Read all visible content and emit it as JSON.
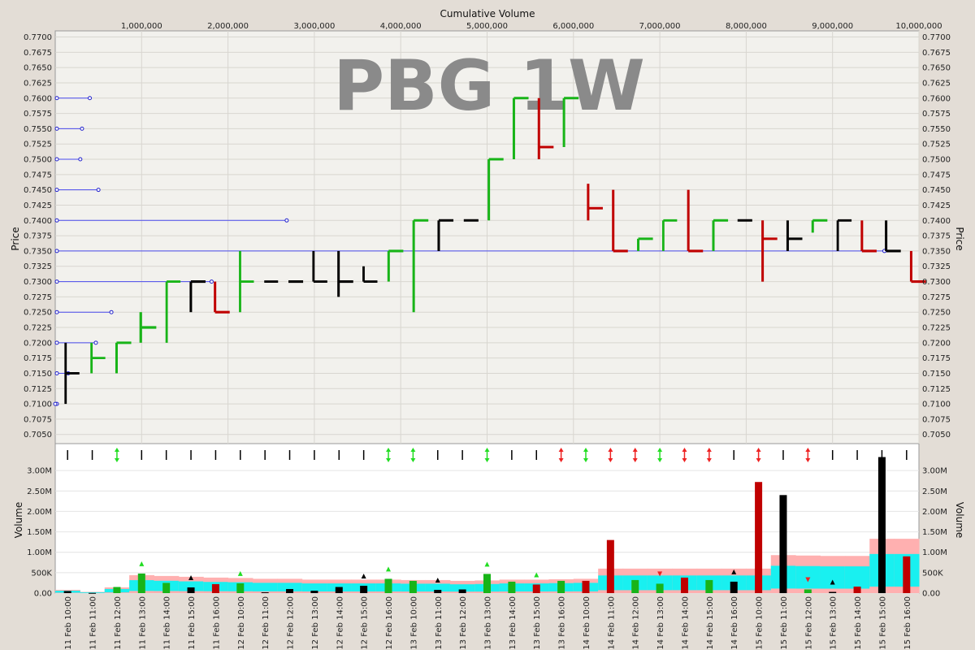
{
  "chart_data": [
    {
      "type": "line",
      "panel": "price",
      "watermark": "PBG 1W",
      "xlabel": "Cumulative Volume",
      "ylabel": "Price",
      "xlim": [
        0,
        10000000
      ],
      "ylim": [
        0.7035,
        0.771
      ],
      "x_ticks": [
        {
          "v": 1000000,
          "label": "1,000,000"
        },
        {
          "v": 2000000,
          "label": "2,000,000"
        },
        {
          "v": 3000000,
          "label": "3,000,000"
        },
        {
          "v": 4000000,
          "label": "4,000,000"
        },
        {
          "v": 5000000,
          "label": "5,000,000"
        },
        {
          "v": 6000000,
          "label": "6,000,000"
        },
        {
          "v": 7000000,
          "label": "7,000,000"
        },
        {
          "v": 8000000,
          "label": "8,000,000"
        },
        {
          "v": 9000000,
          "label": "9,000,000"
        },
        {
          "v": 10000000,
          "label": "10,000,000"
        }
      ],
      "y_ticks": [
        {
          "v": 0.77,
          "label": "0.7700"
        },
        {
          "v": 0.7675,
          "label": "0.7675"
        },
        {
          "v": 0.765,
          "label": "0.7650"
        },
        {
          "v": 0.7625,
          "label": "0.7625"
        },
        {
          "v": 0.76,
          "label": "0.7600"
        },
        {
          "v": 0.7575,
          "label": "0.7575"
        },
        {
          "v": 0.755,
          "label": "0.7550"
        },
        {
          "v": 0.7525,
          "label": "0.7525"
        },
        {
          "v": 0.75,
          "label": "0.7500"
        },
        {
          "v": 0.7475,
          "label": "0.7475"
        },
        {
          "v": 0.745,
          "label": "0.7450"
        },
        {
          "v": 0.7425,
          "label": "0.7425"
        },
        {
          "v": 0.74,
          "label": "0.7400"
        },
        {
          "v": 0.7375,
          "label": "0.7375"
        },
        {
          "v": 0.735,
          "label": "0.7350"
        },
        {
          "v": 0.7325,
          "label": "0.7325"
        },
        {
          "v": 0.73,
          "label": "0.7300"
        },
        {
          "v": 0.7275,
          "label": "0.7275"
        },
        {
          "v": 0.725,
          "label": "0.7250"
        },
        {
          "v": 0.7225,
          "label": "0.7225"
        },
        {
          "v": 0.72,
          "label": "0.7200"
        },
        {
          "v": 0.7175,
          "label": "0.7175"
        },
        {
          "v": 0.715,
          "label": "0.7150"
        },
        {
          "v": 0.7125,
          "label": "0.7125"
        },
        {
          "v": 0.71,
          "label": "0.7100"
        },
        {
          "v": 0.7075,
          "label": "0.7075"
        },
        {
          "v": 0.705,
          "label": "0.7050"
        }
      ],
      "grid": true,
      "colors": {
        "up": "#18b418",
        "down": "#c00000",
        "flat": "#000000",
        "profile": "#4a4aee"
      },
      "volume_profile": [
        {
          "price": 0.76,
          "volume": 400000
        },
        {
          "price": 0.755,
          "volume": 310000
        },
        {
          "price": 0.75,
          "volume": 290000
        },
        {
          "price": 0.745,
          "volume": 500000
        },
        {
          "price": 0.74,
          "volume": 2680000
        },
        {
          "price": 0.735,
          "volume": 9600000
        },
        {
          "price": 0.73,
          "volume": 1810000
        },
        {
          "price": 0.725,
          "volume": 650000
        },
        {
          "price": 0.72,
          "volume": 470000
        },
        {
          "price": 0.715,
          "volume": 150000
        },
        {
          "price": 0.71,
          "volume": 0
        }
      ],
      "bars": [
        {
          "x0": 120000,
          "x1": 280000,
          "open": 0.715,
          "high": 0.72,
          "low": 0.71,
          "close": 0.715,
          "dir": "flat"
        },
        {
          "x0": 420000,
          "x1": 580000,
          "open": 0.72,
          "high": 0.72,
          "low": 0.715,
          "close": 0.7175,
          "dir": "up"
        },
        {
          "x0": 710000,
          "x1": 880000,
          "open": 0.715,
          "high": 0.72,
          "low": 0.715,
          "close": 0.72,
          "dir": "up"
        },
        {
          "x0": 990000,
          "x1": 1170000,
          "open": 0.72,
          "high": 0.725,
          "low": 0.72,
          "close": 0.7225,
          "dir": "up"
        },
        {
          "x0": 1290000,
          "x1": 1450000,
          "open": 0.72,
          "high": 0.73,
          "low": 0.72,
          "close": 0.73,
          "dir": "up"
        },
        {
          "x0": 1570000,
          "x1": 1740000,
          "open": 0.73,
          "high": 0.73,
          "low": 0.725,
          "close": 0.73,
          "dir": "flat"
        },
        {
          "x0": 1850000,
          "x1": 2020000,
          "open": 0.73,
          "high": 0.73,
          "low": 0.725,
          "close": 0.725,
          "dir": "down"
        },
        {
          "x0": 2140000,
          "x1": 2300000,
          "open": 0.725,
          "high": 0.735,
          "low": 0.725,
          "close": 0.73,
          "dir": "up"
        },
        {
          "x0": 2420000,
          "x1": 2580000,
          "open": 0.73,
          "high": 0.73,
          "low": 0.73,
          "close": 0.73,
          "dir": "flat"
        },
        {
          "x0": 2700000,
          "x1": 2870000,
          "open": 0.73,
          "high": 0.73,
          "low": 0.73,
          "close": 0.73,
          "dir": "flat"
        },
        {
          "x0": 2990000,
          "x1": 3150000,
          "open": 0.73,
          "high": 0.735,
          "low": 0.73,
          "close": 0.73,
          "dir": "flat"
        },
        {
          "x0": 3280000,
          "x1": 3450000,
          "open": 0.73,
          "high": 0.735,
          "low": 0.7275,
          "close": 0.73,
          "dir": "flat"
        },
        {
          "x0": 3570000,
          "x1": 3730000,
          "open": 0.73,
          "high": 0.7325,
          "low": 0.73,
          "close": 0.73,
          "dir": "flat"
        },
        {
          "x0": 3860000,
          "x1": 4030000,
          "open": 0.73,
          "high": 0.735,
          "low": 0.73,
          "close": 0.735,
          "dir": "up"
        },
        {
          "x0": 4150000,
          "x1": 4320000,
          "open": 0.725,
          "high": 0.74,
          "low": 0.725,
          "close": 0.74,
          "dir": "up"
        },
        {
          "x0": 4440000,
          "x1": 4610000,
          "open": 0.74,
          "high": 0.74,
          "low": 0.735,
          "close": 0.74,
          "dir": "flat"
        },
        {
          "x0": 4730000,
          "x1": 4900000,
          "open": 0.74,
          "high": 0.74,
          "low": 0.74,
          "close": 0.74,
          "dir": "flat"
        },
        {
          "x0": 5020000,
          "x1": 5190000,
          "open": 0.74,
          "high": 0.75,
          "low": 0.74,
          "close": 0.75,
          "dir": "up"
        },
        {
          "x0": 5310000,
          "x1": 5480000,
          "open": 0.75,
          "high": 0.76,
          "low": 0.75,
          "close": 0.76,
          "dir": "up"
        },
        {
          "x0": 5600000,
          "x1": 5770000,
          "open": 0.76,
          "high": 0.76,
          "low": 0.75,
          "close": 0.752,
          "dir": "down"
        },
        {
          "x0": 5890000,
          "x1": 6060000,
          "open": 0.752,
          "high": 0.76,
          "low": 0.752,
          "close": 0.76,
          "dir": "up"
        },
        {
          "x0": 6170000,
          "x1": 6340000,
          "open": 0.746,
          "high": 0.746,
          "low": 0.74,
          "close": 0.742,
          "dir": "down"
        },
        {
          "x0": 6460000,
          "x1": 6630000,
          "open": 0.745,
          "high": 0.745,
          "low": 0.735,
          "close": 0.735,
          "dir": "down"
        },
        {
          "x0": 6750000,
          "x1": 6920000,
          "open": 0.735,
          "high": 0.737,
          "low": 0.735,
          "close": 0.737,
          "dir": "up"
        },
        {
          "x0": 7040000,
          "x1": 7200000,
          "open": 0.735,
          "high": 0.74,
          "low": 0.735,
          "close": 0.74,
          "dir": "up"
        },
        {
          "x0": 7330000,
          "x1": 7500000,
          "open": 0.745,
          "high": 0.745,
          "low": 0.735,
          "close": 0.735,
          "dir": "down"
        },
        {
          "x0": 7620000,
          "x1": 7790000,
          "open": 0.735,
          "high": 0.74,
          "low": 0.735,
          "close": 0.74,
          "dir": "up"
        },
        {
          "x0": 7900000,
          "x1": 8070000,
          "open": 0.74,
          "high": 0.74,
          "low": 0.74,
          "close": 0.74,
          "dir": "flat"
        },
        {
          "x0": 8190000,
          "x1": 8360000,
          "open": 0.74,
          "high": 0.74,
          "low": 0.73,
          "close": 0.737,
          "dir": "down"
        },
        {
          "x0": 8480000,
          "x1": 8650000,
          "open": 0.737,
          "high": 0.74,
          "low": 0.735,
          "close": 0.737,
          "dir": "flat"
        },
        {
          "x0": 8770000,
          "x1": 8940000,
          "open": 0.738,
          "high": 0.74,
          "low": 0.738,
          "close": 0.74,
          "dir": "up"
        },
        {
          "x0": 9060000,
          "x1": 9220000,
          "open": 0.74,
          "high": 0.74,
          "low": 0.735,
          "close": 0.74,
          "dir": "flat"
        },
        {
          "x0": 9340000,
          "x1": 9510000,
          "open": 0.74,
          "high": 0.74,
          "low": 0.735,
          "close": 0.735,
          "dir": "down"
        },
        {
          "x0": 9620000,
          "x1": 9790000,
          "open": 0.74,
          "high": 0.74,
          "low": 0.735,
          "close": 0.735,
          "dir": "flat"
        },
        {
          "x0": 9910000,
          "x1": 10080000,
          "open": 0.735,
          "high": 0.735,
          "low": 0.73,
          "close": 0.73,
          "dir": "down"
        }
      ]
    },
    {
      "type": "bar",
      "panel": "volume",
      "ylabel": "Volume",
      "ylim": [
        0,
        3500000
      ],
      "y_ticks": [
        {
          "v": 0,
          "label": "0.00"
        },
        {
          "v": 500000,
          "label": "500K"
        },
        {
          "v": 1000000,
          "label": "1.00M"
        },
        {
          "v": 1500000,
          "label": "1.50M"
        },
        {
          "v": 2000000,
          "label": "2.00M"
        },
        {
          "v": 2500000,
          "label": "2.50M"
        },
        {
          "v": 3000000,
          "label": "3.00M"
        }
      ],
      "y_ticks_right": [
        {
          "v": 0,
          "label": "0.00"
        },
        {
          "v": 500000,
          "label": "500K"
        },
        {
          "v": 1000000,
          "label": "1.00M"
        },
        {
          "v": 1500000,
          "label": "1.50M"
        },
        {
          "v": 2000000,
          "label": "2.00M"
        },
        {
          "v": 2500000,
          "label": "2.50M"
        },
        {
          "v": 3000000,
          "label": "3.00M"
        }
      ],
      "categories": [
        "11 Feb 10:00",
        "11 Feb 11:00",
        "11 Feb 12:00",
        "11 Feb 13:00",
        "11 Feb 14:00",
        "11 Feb 15:00",
        "11 Feb 16:00",
        "12 Feb 10:00",
        "12 Feb 11:00",
        "12 Feb 12:00",
        "12 Feb 13:00",
        "12 Feb 14:00",
        "12 Feb 15:00",
        "12 Feb 16:00",
        "13 Feb 10:00",
        "13 Feb 11:00",
        "13 Feb 12:00",
        "13 Feb 13:00",
        "13 Feb 14:00",
        "13 Feb 15:00",
        "13 Feb 16:00",
        "14 Feb 10:00",
        "14 Feb 11:00",
        "14 Feb 12:00",
        "14 Feb 13:00",
        "14 Feb 14:00",
        "14 Feb 15:00",
        "14 Feb 16:00",
        "15 Feb 10:00",
        "15 Feb 11:00",
        "15 Feb 12:00",
        "15 Feb 13:00",
        "15 Feb 14:00",
        "15 Feb 15:00",
        "15 Feb 16:00"
      ],
      "values": [
        50000,
        5000,
        150000,
        480000,
        250000,
        140000,
        220000,
        240000,
        20000,
        100000,
        60000,
        150000,
        180000,
        350000,
        300000,
        80000,
        90000,
        470000,
        280000,
        210000,
        300000,
        300000,
        1300000,
        320000,
        230000,
        380000,
        320000,
        280000,
        2720000,
        2400000,
        90000,
        30000,
        160000,
        3330000,
        900000
      ],
      "bar_dirs": [
        "flat",
        "flat",
        "up",
        "up",
        "up",
        "flat",
        "down",
        "up",
        "flat",
        "flat",
        "flat",
        "flat",
        "flat",
        "up",
        "up",
        "flat",
        "flat",
        "up",
        "up",
        "down",
        "up",
        "down",
        "down",
        "up",
        "up",
        "down",
        "up",
        "flat",
        "down",
        "flat",
        "up",
        "flat",
        "down",
        "flat",
        "down"
      ],
      "avg_band": [
        80000,
        30000,
        140000,
        440000,
        420000,
        400000,
        380000,
        370000,
        350000,
        350000,
        330000,
        330000,
        330000,
        330000,
        320000,
        320000,
        300000,
        310000,
        330000,
        330000,
        340000,
        350000,
        600000,
        600000,
        600000,
        600000,
        600000,
        600000,
        600000,
        930000,
        920000,
        910000,
        910000,
        1330000,
        1330000
      ],
      "markers": [
        {
          "i": 3,
          "dir": "up"
        },
        {
          "i": 5,
          "dir": "flat"
        },
        {
          "i": 7,
          "dir": "up"
        },
        {
          "i": 12,
          "dir": "flat"
        },
        {
          "i": 13,
          "dir": "up"
        },
        {
          "i": 15,
          "dir": "flat"
        },
        {
          "i": 17,
          "dir": "up"
        },
        {
          "i": 19,
          "dir": "up"
        },
        {
          "i": 24,
          "dir": "down"
        },
        {
          "i": 27,
          "dir": "flat"
        },
        {
          "i": 30,
          "dir": "down"
        },
        {
          "i": 31,
          "dir": "flat"
        }
      ],
      "top_markers": [
        "flat",
        "flat",
        "up",
        "flat",
        "flat",
        "flat",
        "flat",
        "flat",
        "flat",
        "flat",
        "flat",
        "flat",
        "flat",
        "up",
        "up",
        "flat",
        "flat",
        "up",
        "flat",
        "flat",
        "down",
        "up",
        "down",
        "down",
        "up",
        "down",
        "down",
        "flat",
        "down",
        "flat",
        "down",
        "flat",
        "flat",
        "flat",
        "flat"
      ]
    }
  ]
}
